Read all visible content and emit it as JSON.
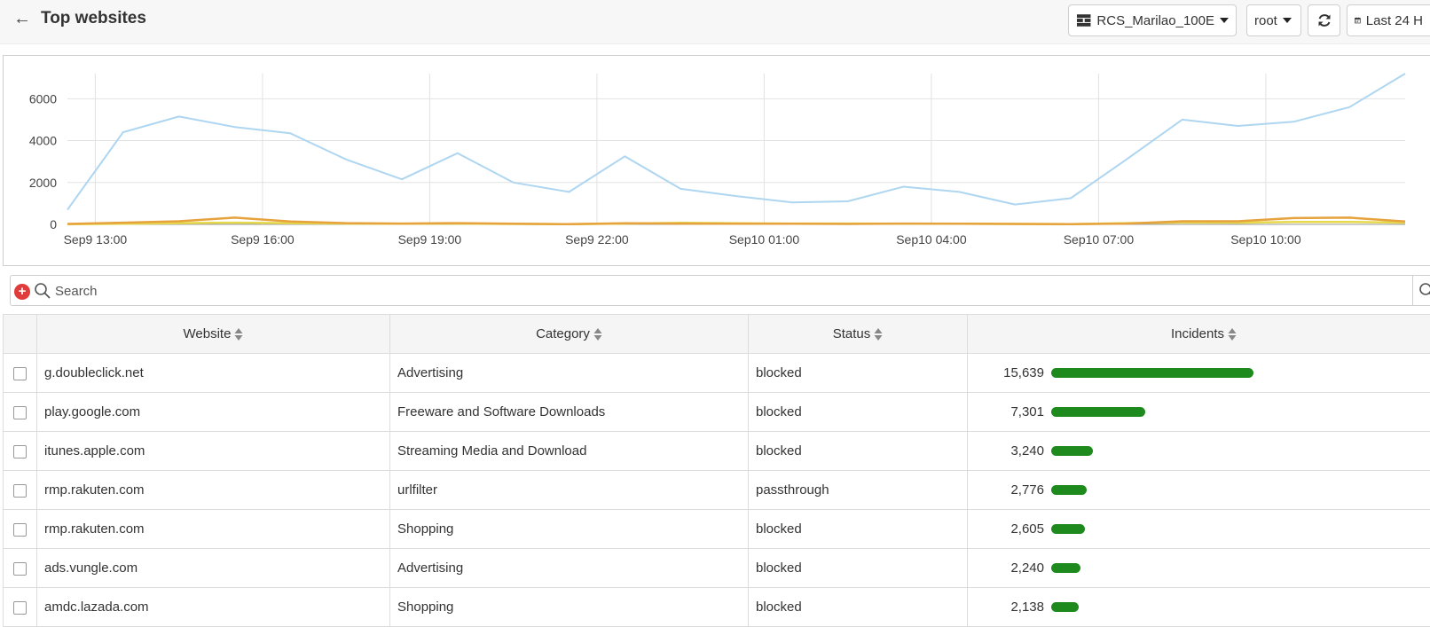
{
  "header": {
    "title": "Top websites",
    "device_select": "RCS_Marilao_100E",
    "vdom_select": "root",
    "time_range": "Last 24 H"
  },
  "colors": {
    "line_primary": "#aed6f1",
    "line_secondary": "#e6a23c",
    "line_tertiary": "#e6d94a",
    "bar": "#1e8a1e",
    "add_filter": "#e03c3c"
  },
  "chart_data": {
    "type": "line",
    "title": "",
    "xlabel": "",
    "ylabel": "",
    "x": [
      "Sep9 11:30",
      "Sep9 12:30",
      "Sep9 13:30",
      "Sep9 14:30",
      "Sep9 15:30",
      "Sep9 16:30",
      "Sep9 17:30",
      "Sep9 18:30",
      "Sep9 19:30",
      "Sep9 20:30",
      "Sep9 21:30",
      "Sep9 22:30",
      "Sep9 23:30",
      "Sep10 00:30",
      "Sep10 01:30",
      "Sep10 02:30",
      "Sep10 03:30",
      "Sep10 04:30",
      "Sep10 05:30",
      "Sep10 06:30",
      "Sep10 07:30",
      "Sep10 08:30",
      "Sep10 09:30",
      "Sep10 10:30",
      "Sep10 11:30"
    ],
    "tick_labels": [
      "Sep9 13:00",
      "Sep9 16:00",
      "Sep9 19:00",
      "Sep9 22:00",
      "Sep10 01:00",
      "Sep10 04:00",
      "Sep10 07:00",
      "Sep10 10:00"
    ],
    "ylim": [
      0,
      7200
    ],
    "yticks": [
      0,
      2000,
      4000,
      6000
    ],
    "grid": true,
    "series": [
      {
        "color": "#aed6f1",
        "values": [
          700,
          4400,
          5150,
          4650,
          4350,
          3100,
          2150,
          3400,
          2000,
          1550,
          3250,
          1700,
          1350,
          1050,
          1100,
          1800,
          1550,
          950,
          1250,
          3100,
          5000,
          4700,
          4900,
          5600,
          7200
        ]
      },
      {
        "color": "#e6a23c",
        "values": [
          20,
          80,
          150,
          320,
          140,
          60,
          40,
          60,
          30,
          10,
          50,
          40,
          30,
          30,
          20,
          40,
          30,
          20,
          10,
          40,
          150,
          150,
          300,
          320,
          140
        ]
      },
      {
        "color": "#e6d94a",
        "values": [
          10,
          30,
          60,
          80,
          60,
          40,
          30,
          40,
          20,
          10,
          40,
          70,
          50,
          40,
          40,
          30,
          30,
          20,
          10,
          60,
          90,
          80,
          120,
          120,
          80
        ]
      }
    ]
  },
  "search": {
    "placeholder": "Search"
  },
  "table": {
    "columns": [
      "Website",
      "Category",
      "Status",
      "Incidents"
    ],
    "max_incidents": 15639,
    "rows": [
      {
        "website": "g.doubleclick.net",
        "category": "Advertising",
        "status": "blocked",
        "incidents": "15,639",
        "value": 15639
      },
      {
        "website": "play.google.com",
        "category": "Freeware and Software Downloads",
        "status": "blocked",
        "incidents": "7,301",
        "value": 7301
      },
      {
        "website": "itunes.apple.com",
        "category": "Streaming Media and Download",
        "status": "blocked",
        "incidents": "3,240",
        "value": 3240
      },
      {
        "website": "rmp.rakuten.com",
        "category": "urlfilter",
        "status": "passthrough",
        "incidents": "2,776",
        "value": 2776
      },
      {
        "website": "rmp.rakuten.com",
        "category": "Shopping",
        "status": "blocked",
        "incidents": "2,605",
        "value": 2605
      },
      {
        "website": "ads.vungle.com",
        "category": "Advertising",
        "status": "blocked",
        "incidents": "2,240",
        "value": 2240
      },
      {
        "website": "amdc.lazada.com",
        "category": "Shopping",
        "status": "blocked",
        "incidents": "2,138",
        "value": 2138
      }
    ]
  }
}
